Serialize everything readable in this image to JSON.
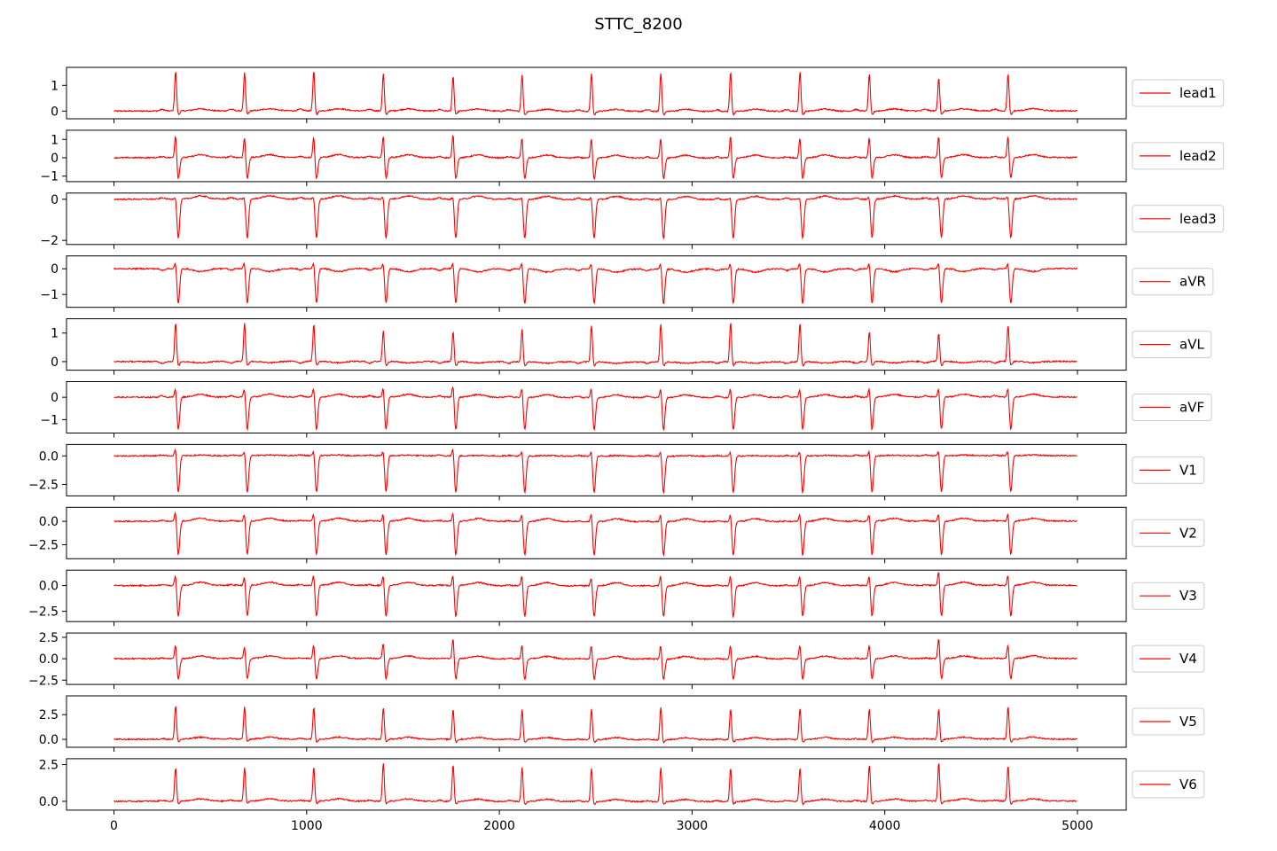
{
  "chart_data": {
    "type": "line",
    "title": "STTC_8200",
    "x_range": [
      0,
      5000
    ],
    "x_ticks": [
      0,
      1000,
      2000,
      3000,
      4000,
      5000
    ],
    "x_tick_labels": [
      "0",
      "1000",
      "2000",
      "3000",
      "4000",
      "5000"
    ],
    "line_color": "#ff0000",
    "legend_position": "right, outside each panel",
    "beat_positions": [
      320,
      678,
      1037,
      1398,
      1760,
      2118,
      2478,
      2838,
      3200,
      3560,
      3920,
      4280,
      4640
    ],
    "leads": [
      {
        "name": "lead1",
        "ylim": [
          -0.3,
          1.7
        ],
        "yticks": [
          0,
          1
        ],
        "ytick_labels": [
          "0",
          "1"
        ],
        "r_peaks": [
          1.55,
          1.5,
          1.55,
          1.45,
          1.35,
          1.45,
          1.5,
          1.5,
          1.55,
          1.55,
          1.45,
          1.3,
          1.45
        ],
        "s_depth": -0.15,
        "t_amp": 0.08
      },
      {
        "name": "lead2",
        "ylim": [
          -1.3,
          1.5
        ],
        "yticks": [
          -1,
          0,
          1
        ],
        "ytick_labels": [
          "−1",
          "0",
          "1"
        ],
        "r_peaks": [
          1.3,
          1.2,
          1.2,
          1.3,
          1.35,
          1.2,
          1.2,
          1.2,
          1.3,
          1.2,
          1.2,
          1.25,
          1.25
        ],
        "s_depth": -1.15,
        "t_amp": 0.15
      },
      {
        "name": "lead3",
        "ylim": [
          -2.2,
          0.3
        ],
        "yticks": [
          -2,
          0
        ],
        "ytick_labels": [
          "−2",
          "0"
        ],
        "r_peaks": [
          0.2,
          0.15,
          0.2,
          0.2,
          0.2,
          0.2,
          0.2,
          0.2,
          0.2,
          0.2,
          0.2,
          0.2,
          0.2
        ],
        "s_depth": -1.9,
        "t_amp": 0.15
      },
      {
        "name": "aVR",
        "ylim": [
          -1.5,
          0.5
        ],
        "yticks": [
          -1,
          0
        ],
        "ytick_labels": [
          "−1",
          "0"
        ],
        "r_peaks": [
          0.3,
          0.3,
          0.3,
          0.3,
          0.3,
          0.3,
          0.3,
          0.3,
          0.3,
          0.3,
          0.3,
          0.3,
          0.3
        ],
        "s_depth": -1.35,
        "t_amp": -0.12
      },
      {
        "name": "aVL",
        "ylim": [
          -0.3,
          1.5
        ],
        "yticks": [
          0,
          1
        ],
        "ytick_labels": [
          "0",
          "1"
        ],
        "r_peaks": [
          1.35,
          1.35,
          1.3,
          1.1,
          1.05,
          1.15,
          1.3,
          1.35,
          1.4,
          1.35,
          1.05,
          1.0,
          1.3
        ],
        "s_depth": -0.15,
        "t_amp": -0.05
      },
      {
        "name": "aVF",
        "ylim": [
          -1.6,
          0.7
        ],
        "yticks": [
          -1,
          0
        ],
        "ytick_labels": [
          "−1",
          "0"
        ],
        "r_peaks": [
          0.5,
          0.45,
          0.5,
          0.5,
          0.6,
          0.5,
          0.5,
          0.5,
          0.5,
          0.5,
          0.5,
          0.5,
          0.5
        ],
        "s_depth": -1.45,
        "t_amp": 0.12
      },
      {
        "name": "V1",
        "ylim": [
          -3.5,
          1.0
        ],
        "yticks": [
          -2.5,
          0.0
        ],
        "ytick_labels": [
          "−2.5",
          "0.0"
        ],
        "r_peaks": [
          0.8,
          0.6,
          0.6,
          0.6,
          0.8,
          0.6,
          0.6,
          0.6,
          0.6,
          0.6,
          0.6,
          0.6,
          0.6
        ],
        "s_depth": -3.2,
        "t_amp": 0.05
      },
      {
        "name": "V2",
        "ylim": [
          -4.0,
          1.5
        ],
        "yticks": [
          -2.5,
          0.0
        ],
        "ytick_labels": [
          "−2.5",
          "0.0"
        ],
        "r_peaks": [
          1.2,
          1.0,
          1.0,
          1.0,
          1.2,
          1.0,
          1.0,
          1.0,
          1.0,
          1.0,
          1.0,
          1.0,
          1.0
        ],
        "s_depth": -3.6,
        "t_amp": 0.3
      },
      {
        "name": "V3",
        "ylim": [
          -3.5,
          1.5
        ],
        "yticks": [
          -2.5,
          0.0
        ],
        "ytick_labels": [
          "−2.5",
          "0.0"
        ],
        "r_peaks": [
          1.2,
          1.0,
          1.2,
          1.2,
          1.2,
          1.2,
          1.0,
          1.2,
          1.2,
          1.2,
          1.2,
          1.6,
          1.2
        ],
        "s_depth": -3.0,
        "t_amp": 0.3
      },
      {
        "name": "V4",
        "ylim": [
          -3.0,
          3.0
        ],
        "yticks": [
          -2.5,
          0.0,
          2.5
        ],
        "ytick_labels": [
          "−2.5",
          "0.0",
          "2.5"
        ],
        "r_peaks": [
          1.8,
          1.6,
          1.8,
          2.0,
          2.6,
          1.8,
          1.8,
          1.8,
          1.8,
          1.8,
          1.8,
          2.6,
          1.8
        ],
        "s_depth": -2.4,
        "t_amp": 0.3
      },
      {
        "name": "V5",
        "ylim": [
          -0.8,
          4.4
        ],
        "yticks": [
          0.0,
          2.5
        ],
        "ytick_labels": [
          "0.0",
          "2.5"
        ],
        "r_peaks": [
          3.4,
          3.3,
          3.2,
          3.2,
          3.1,
          3.1,
          3.1,
          3.3,
          3.1,
          3.2,
          3.1,
          3.1,
          3.3
        ],
        "s_depth": -0.3,
        "t_amp": 0.2
      },
      {
        "name": "V6",
        "ylim": [
          -0.6,
          2.9
        ],
        "yticks": [
          0.0,
          2.5
        ],
        "ytick_labels": [
          "0.0",
          "2.5"
        ],
        "r_peaks": [
          2.3,
          2.3,
          2.3,
          2.6,
          2.5,
          2.3,
          2.3,
          2.3,
          2.3,
          2.3,
          2.5,
          2.6,
          2.4
        ],
        "s_depth": -0.2,
        "t_amp": 0.15
      }
    ]
  }
}
